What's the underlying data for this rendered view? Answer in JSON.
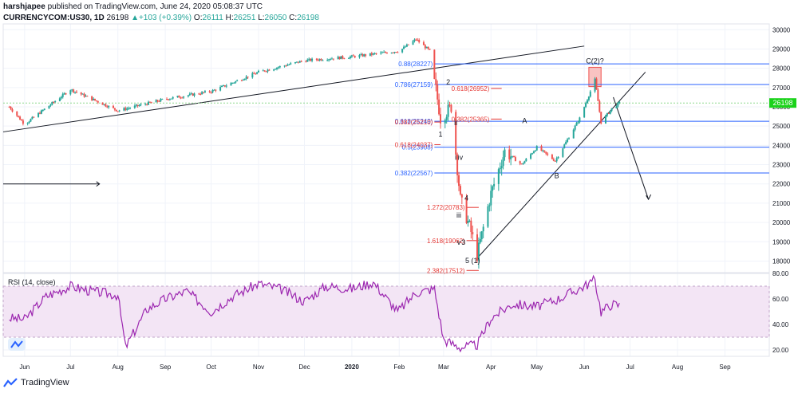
{
  "header": {
    "author": "harshjapee",
    "published": "published on TradingView.com, June 24, 2020 05:08:37 UTC",
    "symbol": "CURRENCYCOM:US30, 1D",
    "last": "26198",
    "change": "+103 (+0.39%)",
    "o_label": "O:",
    "o": "26111",
    "h_label": "H:",
    "h": "26251",
    "l_label": "L:",
    "l": "26050",
    "c_label": "C:",
    "c": "26198"
  },
  "footer": {
    "brand": "TradingView"
  },
  "colors": {
    "up": "#26a69a",
    "down": "#ef5350",
    "fib_blue": "#2962ff",
    "fib_red": "#e53935",
    "rsi": "#9c27b0",
    "rsi_band": "#f3e5f5",
    "price_tag": "#1ad21a",
    "grid": "#f0f3fa"
  },
  "chart_data": [
    {
      "type": "candlestick",
      "symbol": "CURRENCYCOM:US30",
      "interval": "1D",
      "x": [
        "2019-05-22",
        "2019-06-01",
        "2019-07-01",
        "2019-08-01",
        "2019-09-01",
        "2019-10-01",
        "2019-11-01",
        "2019-12-01",
        "2020-01-01",
        "2020-02-01",
        "2020-02-12",
        "2020-02-21",
        "2020-02-28",
        "2020-03-06",
        "2020-03-12",
        "2020-03-18",
        "2020-03-23",
        "2020-04-01",
        "2020-04-10",
        "2020-04-21",
        "2020-05-01",
        "2020-05-13",
        "2020-05-29",
        "2020-06-08",
        "2020-06-12",
        "2020-06-19",
        "2020-06-24"
      ],
      "close": [
        26000,
        25100,
        26900,
        25800,
        26400,
        26800,
        27800,
        28400,
        28600,
        28900,
        29500,
        28900,
        25400,
        26000,
        21200,
        19800,
        18300,
        21500,
        23700,
        23000,
        23900,
        23200,
        25400,
        27400,
        25200,
        25900,
        26198
      ],
      "last_price": 26198,
      "ohlc_last": {
        "open": 26111,
        "high": 26251,
        "low": 26050,
        "close": 26198
      },
      "x_ticks": [
        "Jun",
        "Jul",
        "Aug",
        "Sep",
        "Oct",
        "Nov",
        "Dec",
        "2020",
        "Feb",
        "Mar",
        "Apr",
        "May",
        "Jun",
        "Jul",
        "Aug",
        "Sep"
      ],
      "y_ticks": [
        "30000",
        "29000",
        "28000",
        "27000",
        "26000",
        "25000",
        "24000",
        "23000",
        "22000",
        "21000",
        "20000",
        "19000",
        "18000"
      ],
      "ylim": [
        17400,
        30300
      ],
      "price_label": "26198",
      "fib_levels_blue": [
        {
          "label": "0.88(28227)",
          "value": 28227
        },
        {
          "label": "0.786(27159)",
          "value": 27159
        },
        {
          "label": "0.618(25249)",
          "value": 25249
        },
        {
          "label": "0.5(23908)",
          "value": 23908
        },
        {
          "label": "0.382(22567)",
          "value": 22567
        }
      ],
      "fib_levels_red": [
        {
          "label": "0.618(26952)",
          "value": 26952
        },
        {
          "label": "0.382(25365)",
          "value": 25365
        },
        {
          "label": "0.382(25210)",
          "value": 25210
        },
        {
          "label": "0.618(24037)",
          "value": 24037
        },
        {
          "label": "1.272(20783)",
          "value": 20783
        },
        {
          "label": "1.618(19062)",
          "value": 19062
        },
        {
          "label": "2.382(17512)",
          "value": 17512
        }
      ],
      "wave_labels": [
        {
          "text": "1",
          "x": "2020-02-28",
          "y": 24450
        },
        {
          "text": "2",
          "x": "2020-03-04",
          "y": 27150
        },
        {
          "text": "ii",
          "x": "2020-03-09",
          "y": 25050
        },
        {
          "text": "i",
          "x": "2020-03-09",
          "y": 23250
        },
        {
          "text": "iv",
          "x": "2020-03-12",
          "y": 23250
        },
        {
          "text": "4",
          "x": "2020-03-16",
          "y": 21150
        },
        {
          "text": "iii",
          "x": "2020-03-11",
          "y": 20250
        },
        {
          "text": "v",
          "x": "2020-03-11",
          "y": 18850
        },
        {
          "text": "3",
          "x": "2020-03-14",
          "y": 18850
        },
        {
          "text": "5 (1)",
          "x": "2020-03-20",
          "y": 17900
        },
        {
          "text": "A",
          "x": "2020-04-23",
          "y": 25150
        },
        {
          "text": "B",
          "x": "2020-05-14",
          "y": 22300
        },
        {
          "text": "C(2)?",
          "x": "2020-06-08",
          "y": 28250
        }
      ]
    },
    {
      "type": "line",
      "name": "RSI (14, close)",
      "x": [
        "2019-05-22",
        "2019-06-01",
        "2019-06-15",
        "2019-07-01",
        "2019-07-15",
        "2019-08-01",
        "2019-08-06",
        "2019-08-20",
        "2019-09-01",
        "2019-09-15",
        "2019-10-01",
        "2019-10-15",
        "2019-11-01",
        "2019-11-15",
        "2019-12-01",
        "2019-12-15",
        "2020-01-01",
        "2020-01-15",
        "2020-01-31",
        "2020-02-12",
        "2020-02-24",
        "2020-03-01",
        "2020-03-12",
        "2020-03-23",
        "2020-04-01",
        "2020-04-15",
        "2020-05-01",
        "2020-05-15",
        "2020-06-01",
        "2020-06-08",
        "2020-06-12",
        "2020-06-19",
        "2020-06-24"
      ],
      "values": [
        45,
        44,
        62,
        70,
        66,
        63,
        22,
        52,
        60,
        66,
        50,
        62,
        72,
        68,
        58,
        70,
        68,
        73,
        50,
        65,
        68,
        28,
        22,
        24,
        45,
        56,
        54,
        60,
        70,
        75,
        50,
        56,
        55
      ],
      "ylim": [
        15,
        80
      ],
      "y_ticks": [
        "80.00",
        "60.00",
        "40.00",
        "20.00"
      ],
      "bands": [
        30,
        70
      ]
    }
  ]
}
